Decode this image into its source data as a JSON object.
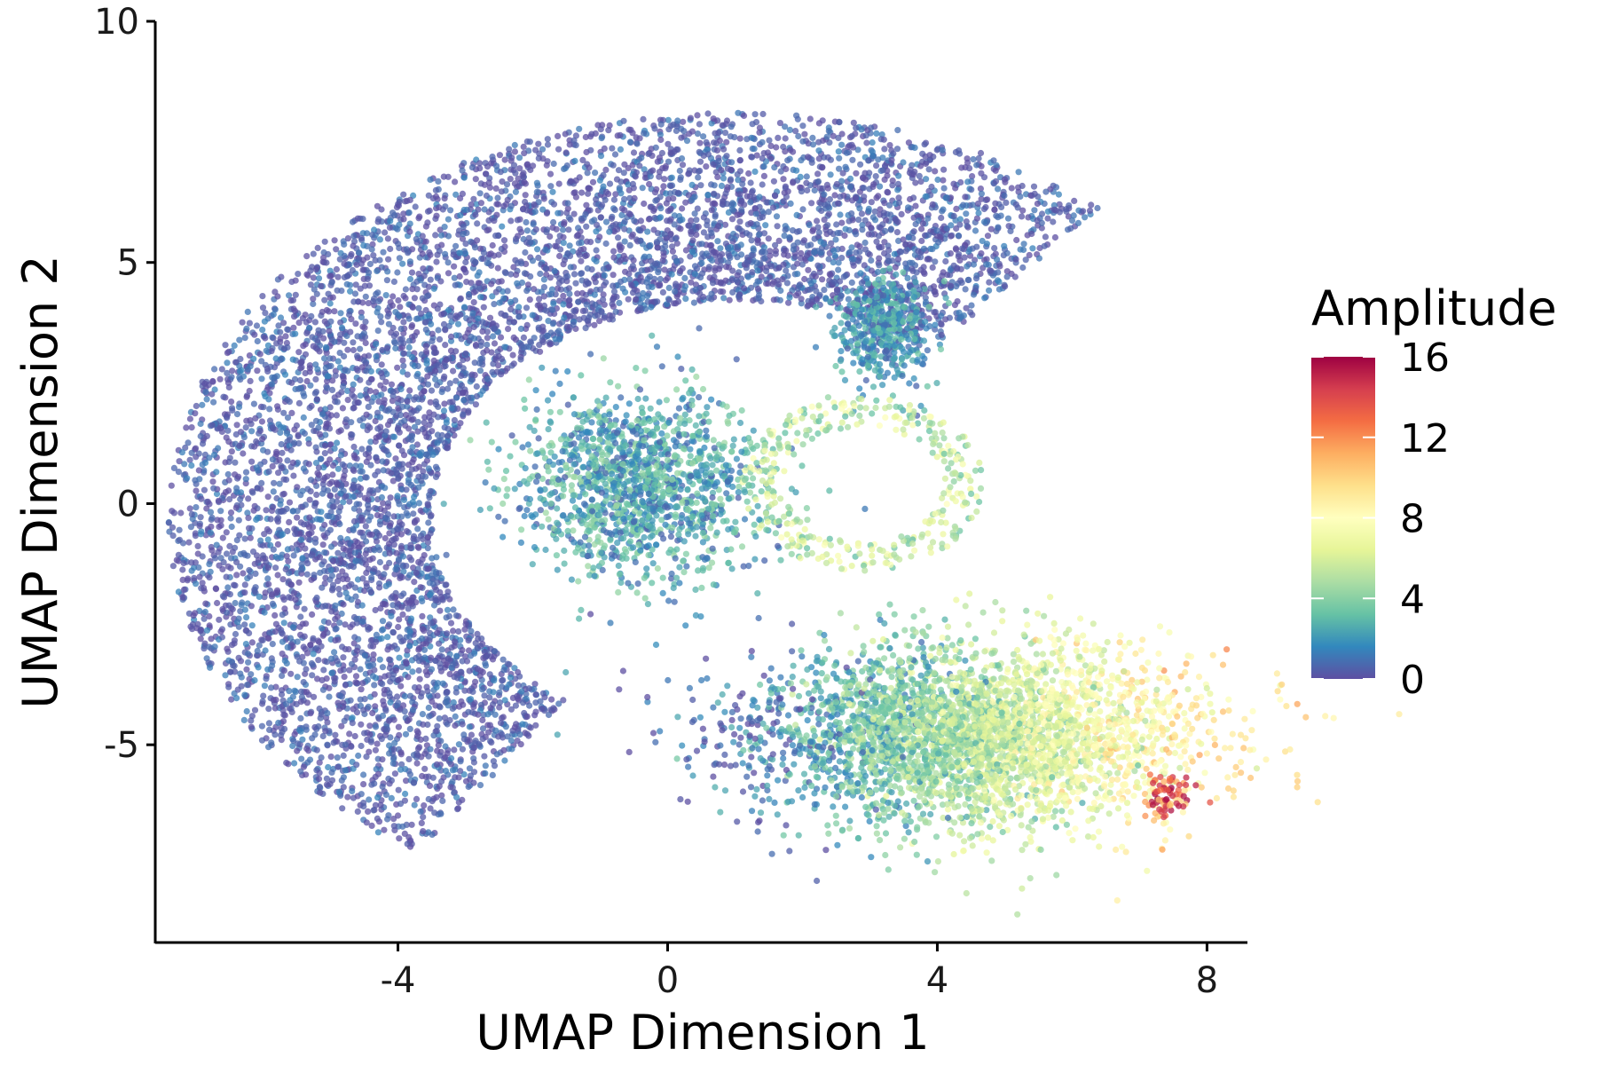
{
  "chart_data": {
    "type": "scatter",
    "xlabel": "UMAP Dimension 1",
    "ylabel": "UMAP Dimension 2",
    "xlim": [
      -7.6,
      8.6
    ],
    "ylim": [
      -9.1,
      10
    ],
    "xticks": [
      -4,
      0,
      4,
      8
    ],
    "xtick_labels": [
      "-4",
      "0",
      "4",
      "8"
    ],
    "yticks": [
      -5,
      0,
      5,
      10
    ],
    "ytick_labels": [
      "-5",
      "0",
      "5",
      "10"
    ],
    "grid": false,
    "legend": {
      "title": "Amplitude",
      "position": "right",
      "range": [
        0,
        16
      ],
      "ticks": [
        0,
        4,
        8,
        12,
        16
      ],
      "tick_labels": [
        "0",
        "4",
        "8",
        "12",
        "16"
      ],
      "colormap": "Spectral (reversed)",
      "colors": [
        "#5E4FA2",
        "#3288BD",
        "#66C2A5",
        "#ABDDA4",
        "#E6F598",
        "#FFFFBF",
        "#FEE08B",
        "#FDAE61",
        "#F46D43",
        "#D53E4F",
        "#9E0142"
      ]
    },
    "point_alpha": 0.75,
    "regions": [
      {
        "name": "crescent",
        "shape": "arc",
        "center": [
          1.0,
          -0.3
        ],
        "radius_range": [
          4.5,
          8.4
        ],
        "angle_range_deg": [
          50,
          236
        ],
        "amplitude_range": [
          0,
          1.5
        ],
        "count": 6500
      },
      {
        "name": "bridge-right",
        "shape": "blob",
        "center": [
          3.2,
          3.6
        ],
        "spread": [
          0.6,
          1.0
        ],
        "amplitude_range": [
          0.5,
          3.5
        ],
        "count": 450
      },
      {
        "name": "central-mixed",
        "shape": "blob",
        "center": [
          -0.4,
          0.4
        ],
        "spread": [
          1.6,
          1.7
        ],
        "amplitude_range": [
          0.5,
          4.5
        ],
        "count": 1400
      },
      {
        "name": "ring",
        "shape": "ring",
        "center": [
          2.9,
          0.4
        ],
        "radius_range": [
          1.2,
          1.8
        ],
        "amplitude_range": [
          3,
          8
        ],
        "count": 360
      },
      {
        "name": "lower-gradient",
        "shape": "blob",
        "center": [
          4.5,
          -4.8
        ],
        "spread": [
          3.0,
          1.7
        ],
        "amplitude_gradient": {
          "x_from": 0.5,
          "x_to": 7.8,
          "amp_from": 0.5,
          "amp_to": 9
        },
        "count": 3600
      },
      {
        "name": "hotspot-tip",
        "shape": "blob",
        "center": [
          7.4,
          -6.1
        ],
        "spread": [
          0.35,
          0.55
        ],
        "amplitude_range": [
          10,
          16
        ],
        "count": 70
      }
    ]
  }
}
